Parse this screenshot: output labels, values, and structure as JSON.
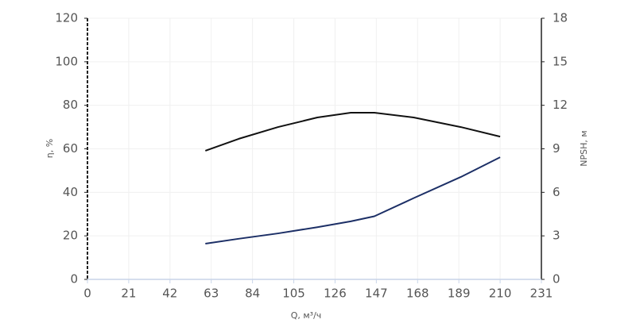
{
  "chart_data": {
    "type": "line",
    "x_label": "Q, м³/ч",
    "y_label": "η, %",
    "y2_label": "NPSH, м",
    "x": [
      60,
      77,
      97,
      117,
      134,
      146,
      166,
      190,
      210
    ],
    "series": [
      {
        "name": "η",
        "color": "#111111",
        "values": [
          59.1,
          64.6,
          70,
          74.4,
          76.6,
          76.6,
          74.4,
          70,
          65.6
        ]
      },
      {
        "name": "NPSH",
        "color": "#1c2f66",
        "axis": "y2",
        "values": [
          2.46,
          2.8,
          3.17,
          3.6,
          4.0,
          4.35,
          5.6,
          7.06,
          8.42
        ]
      }
    ],
    "xlim": [
      0,
      231
    ],
    "xticks": [
      0,
      21,
      42,
      63,
      84,
      105,
      126,
      147,
      168,
      189,
      210,
      231
    ],
    "ylim": [
      0,
      120
    ],
    "yticks": [
      0,
      20,
      40,
      60,
      80,
      100,
      120
    ],
    "y2lim": [
      0,
      18
    ],
    "y2ticks": [
      0,
      3,
      6,
      9,
      12,
      15,
      18
    ],
    "grid": true
  }
}
